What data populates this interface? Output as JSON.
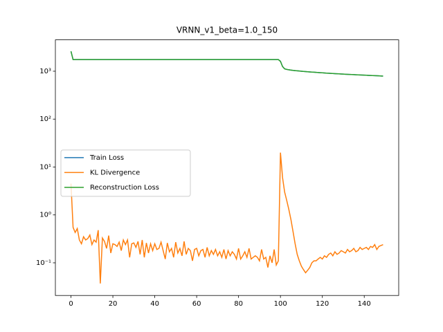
{
  "chart_data": {
    "type": "line",
    "title": "VRNN_v1_beta=1.0_150",
    "log_y": true,
    "legend": "center left",
    "xlim": [
      -7.45,
      156.45
    ],
    "xticks": [
      0,
      20,
      40,
      60,
      80,
      100,
      120,
      140
    ],
    "ylim": [
      0.0208,
      4520
    ],
    "yticks": [
      {
        "value": 0.1,
        "label": "10⁻¹"
      },
      {
        "value": 1,
        "label": "10⁰"
      },
      {
        "value": 10,
        "label": "10¹"
      },
      {
        "value": 100,
        "label": "10²"
      },
      {
        "value": 1000,
        "label": "10³"
      }
    ],
    "x": [
      0,
      1,
      2,
      3,
      4,
      5,
      6,
      7,
      8,
      9,
      10,
      11,
      12,
      13,
      14,
      15,
      16,
      17,
      18,
      19,
      20,
      21,
      22,
      23,
      24,
      25,
      26,
      27,
      28,
      29,
      30,
      31,
      32,
      33,
      34,
      35,
      36,
      37,
      38,
      39,
      40,
      41,
      42,
      43,
      44,
      45,
      46,
      47,
      48,
      49,
      50,
      51,
      52,
      53,
      54,
      55,
      56,
      57,
      58,
      59,
      60,
      61,
      62,
      63,
      64,
      65,
      66,
      67,
      68,
      69,
      70,
      71,
      72,
      73,
      74,
      75,
      76,
      77,
      78,
      79,
      80,
      81,
      82,
      83,
      84,
      85,
      86,
      87,
      88,
      89,
      90,
      91,
      92,
      93,
      94,
      95,
      96,
      97,
      98,
      99,
      100,
      101,
      102,
      103,
      104,
      105,
      106,
      107,
      108,
      109,
      110,
      111,
      112,
      113,
      114,
      115,
      116,
      117,
      118,
      119,
      120,
      121,
      122,
      123,
      124,
      125,
      126,
      127,
      128,
      129,
      130,
      131,
      132,
      133,
      134,
      135,
      136,
      137,
      138,
      139,
      140,
      141,
      142,
      143,
      144,
      145,
      146,
      147,
      148,
      149
    ],
    "series": [
      {
        "name": "Train Loss",
        "color": "#1f77b4",
        "values": [
          2605,
          1750,
          1750,
          1750,
          1750,
          1750,
          1750,
          1750,
          1750,
          1750,
          1750,
          1750,
          1750,
          1750,
          1750,
          1750,
          1750,
          1750,
          1750,
          1750,
          1750,
          1750,
          1750,
          1750,
          1750,
          1750,
          1750,
          1750,
          1750,
          1750,
          1750,
          1750,
          1750,
          1750,
          1750,
          1750,
          1750,
          1750,
          1750,
          1750,
          1750,
          1750,
          1750,
          1750,
          1750,
          1750,
          1750,
          1750,
          1750,
          1750,
          1750,
          1750,
          1750,
          1750,
          1750,
          1750,
          1750,
          1750,
          1750,
          1750,
          1750,
          1750,
          1750,
          1750,
          1750,
          1750,
          1750,
          1750,
          1750,
          1750,
          1750,
          1750,
          1750,
          1750,
          1750,
          1750,
          1750,
          1750,
          1750,
          1750,
          1750,
          1750,
          1750,
          1750,
          1750,
          1750,
          1750,
          1750,
          1750,
          1750,
          1750,
          1750,
          1750,
          1750,
          1750,
          1750,
          1750,
          1750,
          1750,
          1750,
          1620,
          1256,
          1123,
          1092,
          1071,
          1056,
          1040,
          1030,
          1020,
          1010,
          1000,
          992,
          984,
          976,
          968,
          960,
          953,
          946,
          939,
          932,
          925,
          919,
          913,
          907,
          901,
          895,
          890,
          885,
          880,
          875,
          870,
          865,
          860,
          856,
          852,
          848,
          844,
          840,
          836,
          832,
          828,
          824,
          820,
          816,
          812,
          808,
          804,
          800,
          796,
          792
        ]
      },
      {
        "name": "KL Divergence",
        "color": "#ff7f0e",
        "values": [
          4.5,
          0.55,
          0.43,
          0.52,
          0.3,
          0.25,
          0.35,
          0.3,
          0.32,
          0.38,
          0.24,
          0.3,
          0.27,
          0.48,
          0.037,
          0.33,
          0.28,
          0.2,
          0.37,
          0.16,
          0.25,
          0.24,
          0.22,
          0.27,
          0.18,
          0.3,
          0.24,
          0.3,
          0.13,
          0.25,
          0.26,
          0.21,
          0.28,
          0.15,
          0.3,
          0.13,
          0.26,
          0.16,
          0.25,
          0.18,
          0.25,
          0.19,
          0.2,
          0.27,
          0.18,
          0.12,
          0.26,
          0.17,
          0.2,
          0.13,
          0.27,
          0.16,
          0.2,
          0.14,
          0.28,
          0.15,
          0.2,
          0.18,
          0.11,
          0.19,
          0.2,
          0.14,
          0.18,
          0.19,
          0.13,
          0.21,
          0.14,
          0.18,
          0.15,
          0.19,
          0.14,
          0.17,
          0.13,
          0.19,
          0.12,
          0.18,
          0.14,
          0.17,
          0.15,
          0.12,
          0.2,
          0.12,
          0.14,
          0.17,
          0.13,
          0.2,
          0.12,
          0.13,
          0.14,
          0.13,
          0.11,
          0.19,
          0.12,
          0.13,
          0.08,
          0.14,
          0.1,
          0.19,
          0.09,
          0.11,
          20,
          6,
          3,
          2,
          1.3,
          0.8,
          0.45,
          0.25,
          0.15,
          0.11,
          0.085,
          0.072,
          0.062,
          0.07,
          0.08,
          0.1,
          0.11,
          0.11,
          0.12,
          0.13,
          0.12,
          0.14,
          0.13,
          0.15,
          0.16,
          0.14,
          0.17,
          0.15,
          0.16,
          0.18,
          0.17,
          0.16,
          0.19,
          0.17,
          0.18,
          0.2,
          0.17,
          0.18,
          0.21,
          0.19,
          0.2,
          0.21,
          0.19,
          0.22,
          0.21,
          0.24,
          0.19,
          0.22,
          0.23,
          0.24
        ]
      },
      {
        "name": "Reconstruction Loss",
        "color": "#2ca02c",
        "values": [
          2600,
          1750,
          1750,
          1750,
          1750,
          1750,
          1750,
          1750,
          1750,
          1750,
          1750,
          1750,
          1750,
          1750,
          1750,
          1750,
          1750,
          1750,
          1750,
          1750,
          1750,
          1750,
          1750,
          1750,
          1750,
          1750,
          1750,
          1750,
          1750,
          1750,
          1750,
          1750,
          1750,
          1750,
          1750,
          1750,
          1750,
          1750,
          1750,
          1750,
          1750,
          1750,
          1750,
          1750,
          1750,
          1750,
          1750,
          1750,
          1750,
          1750,
          1750,
          1750,
          1750,
          1750,
          1750,
          1750,
          1750,
          1750,
          1750,
          1750,
          1750,
          1750,
          1750,
          1750,
          1750,
          1750,
          1750,
          1750,
          1750,
          1750,
          1750,
          1750,
          1750,
          1750,
          1750,
          1750,
          1750,
          1750,
          1750,
          1750,
          1750,
          1750,
          1750,
          1750,
          1750,
          1750,
          1750,
          1750,
          1750,
          1750,
          1750,
          1750,
          1750,
          1750,
          1750,
          1750,
          1750,
          1750,
          1750,
          1750,
          1600,
          1250,
          1120,
          1090,
          1070,
          1055,
          1040,
          1030,
          1020,
          1010,
          1000,
          992,
          984,
          976,
          968,
          960,
          953,
          946,
          939,
          932,
          925,
          919,
          913,
          907,
          901,
          895,
          890,
          885,
          880,
          875,
          870,
          865,
          860,
          856,
          852,
          848,
          844,
          840,
          836,
          832,
          828,
          824,
          820,
          816,
          812,
          808,
          804,
          800,
          796,
          792
        ]
      }
    ]
  }
}
